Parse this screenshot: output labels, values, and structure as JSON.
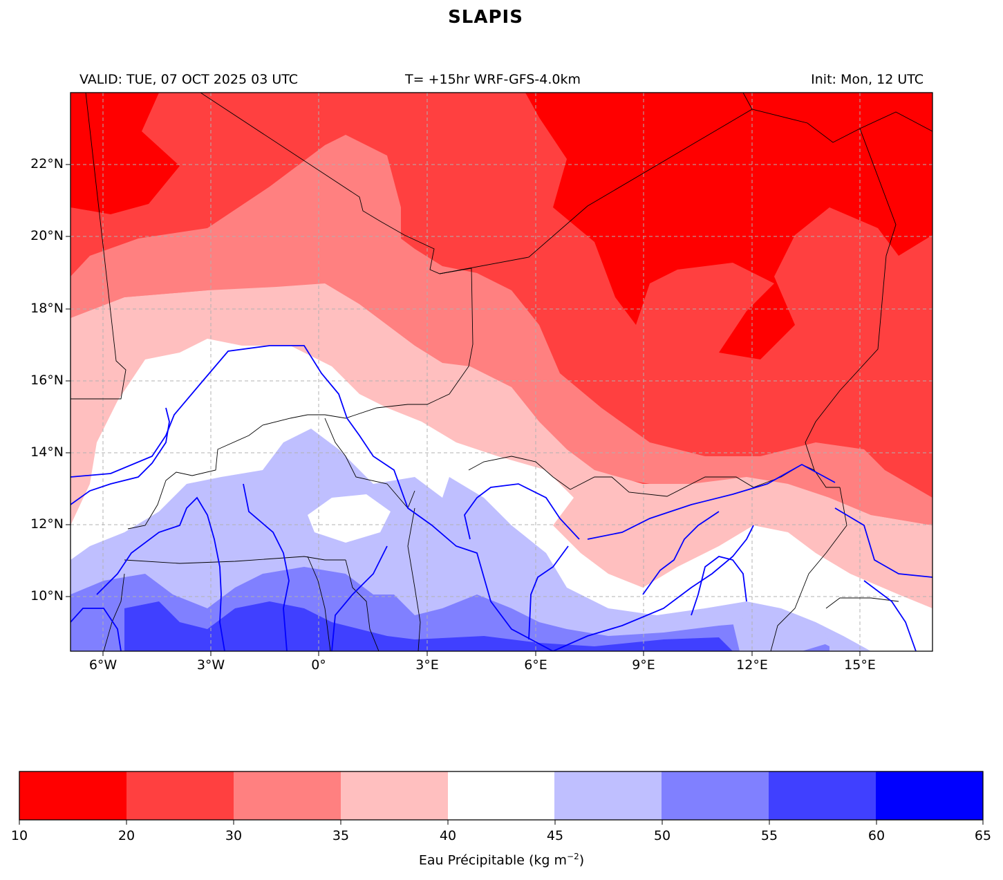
{
  "title": "SLAPIS",
  "header": {
    "valid": "VALID: TUE, 07 OCT 2025 03 UTC",
    "model": "T= +15hr WRF-GFS-4.0km",
    "init": "Init: Mon, 12 UTC"
  },
  "map": {
    "lat_labels": [
      "22°N",
      "20°N",
      "18°N",
      "16°N",
      "14°N",
      "12°N",
      "10°N"
    ],
    "lon_labels": [
      "6°W",
      "3°W",
      "0°",
      "3°E",
      "6°E",
      "9°E",
      "12°E",
      "15°E"
    ],
    "extent": {
      "lon_min": -6.9,
      "lon_max": 17.0,
      "lat_min": 8.5,
      "lat_max": 24.0
    },
    "gridline_style": "dashed gray",
    "river_color": "#0000ff",
    "border_color": "#000000"
  },
  "colorbar": {
    "ticks": [
      "10",
      "20",
      "30",
      "35",
      "40",
      "45",
      "50",
      "55",
      "60",
      "65"
    ],
    "colors": [
      "#ff0000",
      "#ff4040",
      "#ff8080",
      "#ffbfbf",
      "#ffffff",
      "#bfbfff",
      "#8080ff",
      "#4040ff",
      "#0000ff"
    ],
    "label_main": "Eau Précipitable (kg m",
    "label_sup": "−2",
    "label_end": ")"
  }
}
